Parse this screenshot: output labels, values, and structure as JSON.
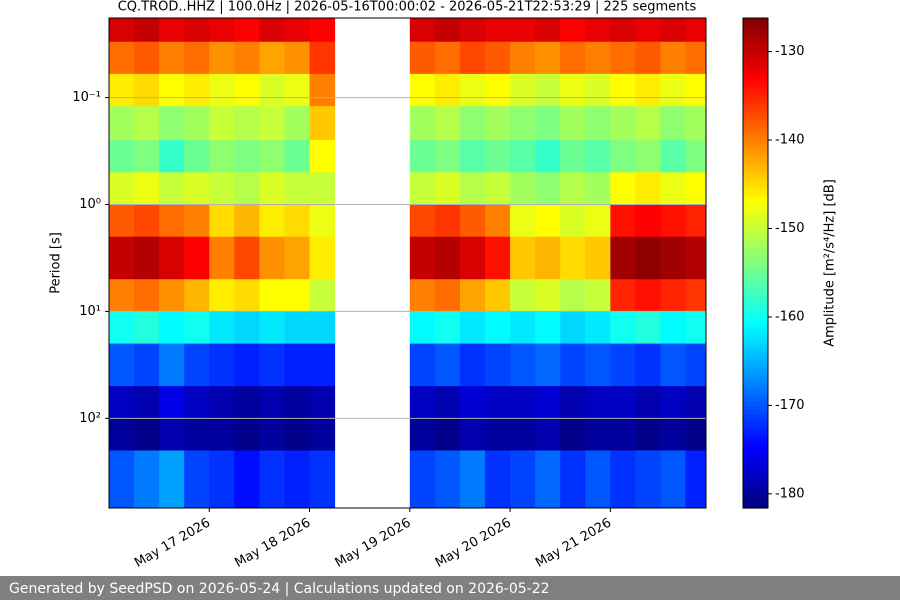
{
  "chart_data": {
    "type": "heatmap",
    "title": "CQ.TROD..HHZ | 100.0Hz | 2026-05-16T00:00:02 - 2026-05-21T22:53:29 | 225 segments",
    "y_label": "Period [s]",
    "colorbar_label": "Amplitude [m²/s⁴/Hz] [dB]",
    "footer": "Generated by SeedPSD on 2026-05-24 | Calculations updated on 2026-05-22",
    "x": [
      "2026-05-16T00:00",
      "2026-05-16T06:00",
      "2026-05-16T12:00",
      "2026-05-16T18:00",
      "2026-05-17T00:00",
      "2026-05-17T06:00",
      "2026-05-17T12:00",
      "2026-05-17T18:00",
      "2026-05-18T00:00",
      "2026-05-18T06:00",
      "2026-05-18T12:00",
      "2026-05-18T18:00",
      "2026-05-19T00:00",
      "2026-05-19T06:00",
      "2026-05-19T12:00",
      "2026-05-19T18:00",
      "2026-05-20T00:00",
      "2026-05-20T06:00",
      "2026-05-20T12:00",
      "2026-05-20T18:00",
      "2026-05-21T00:00",
      "2026-05-21T06:00",
      "2026-05-21T12:00",
      "2026-05-21T18:00"
    ],
    "xlim": [
      "2026-05-16T00:00:02",
      "2026-05-21T22:53:29"
    ],
    "xticks": [
      {
        "value": "2026-05-17T00:00",
        "label": "May 17 2026"
      },
      {
        "value": "2026-05-18T00:00",
        "label": "May 18 2026"
      },
      {
        "value": "2026-05-19T00:00",
        "label": "May 19 2026"
      },
      {
        "value": "2026-05-20T00:00",
        "label": "May 20 2026"
      },
      {
        "value": "2026-05-21T00:00",
        "label": "May 21 2026"
      }
    ],
    "ybins": [
      0.018,
      0.03,
      0.06,
      0.12,
      0.25,
      0.5,
      1,
      2,
      5,
      10,
      20,
      50,
      100,
      200,
      690
    ],
    "ylim": [
      0.018,
      690
    ],
    "y_log": true,
    "y_inverted": true,
    "yticks": [
      {
        "value": 0.1,
        "label": "10⁻¹"
      },
      {
        "value": 1,
        "label": "10⁰"
      },
      {
        "value": 10,
        "label": "10¹"
      },
      {
        "value": 100,
        "label": "10²"
      }
    ],
    "grid": true,
    "colormap": "jet",
    "zlim": [
      -181.6,
      -126.2
    ],
    "zticks": [
      -130,
      -140,
      -150,
      -160,
      -170,
      -180
    ],
    "z": [
      [
        -131,
        -130,
        -132,
        -131,
        -132,
        -133,
        -131,
        -132,
        -133,
        null,
        null,
        null,
        -131,
        -130,
        -131,
        -132,
        -132,
        -131,
        -133,
        -132,
        -131,
        -132,
        -131,
        -132
      ],
      [
        -139,
        -138,
        -140,
        -139,
        -141,
        -140,
        -142,
        -141,
        -136,
        null,
        null,
        null,
        -138,
        -139,
        -137,
        -138,
        -140,
        -141,
        -139,
        -140,
        -139,
        -138,
        -140,
        -139
      ],
      [
        -146,
        -145,
        -147,
        -146,
        -148,
        -147,
        -149,
        -148,
        -140,
        null,
        null,
        null,
        -147,
        -146,
        -148,
        -147,
        -149,
        -150,
        -148,
        -149,
        -147,
        -146,
        -148,
        -147
      ],
      [
        -152,
        -151,
        -153,
        -152,
        -150,
        -151,
        -150,
        -152,
        -144,
        null,
        null,
        null,
        -152,
        -151,
        -153,
        -152,
        -153,
        -154,
        -152,
        -153,
        -152,
        -151,
        -153,
        -152
      ],
      [
        -155,
        -154,
        -158,
        -155,
        -153,
        -154,
        -153,
        -155,
        -147,
        null,
        null,
        null,
        -155,
        -154,
        -156,
        -155,
        -156,
        -158,
        -155,
        -156,
        -154,
        -153,
        -156,
        -154
      ],
      [
        -149,
        -148,
        -150,
        -149,
        -150,
        -151,
        -149,
        -150,
        -150,
        null,
        null,
        null,
        -150,
        -149,
        -151,
        -150,
        -152,
        -153,
        -151,
        -152,
        -147,
        -146,
        -148,
        -147
      ],
      [
        -138,
        -137,
        -139,
        -140,
        -145,
        -143,
        -146,
        -145,
        -148,
        null,
        null,
        null,
        -137,
        -136,
        -138,
        -140,
        -148,
        -147,
        -149,
        -148,
        -134,
        -133,
        -134,
        -135
      ],
      [
        -130,
        -129,
        -131,
        -133,
        -140,
        -137,
        -141,
        -142,
        -146,
        null,
        null,
        null,
        -130,
        -129,
        -131,
        -134,
        -144,
        -143,
        -145,
        -144,
        -128,
        -127,
        -128,
        -129
      ],
      [
        -140,
        -139,
        -141,
        -143,
        -146,
        -145,
        -147,
        -147,
        -150,
        null,
        null,
        null,
        -140,
        -139,
        -142,
        -144,
        -150,
        -149,
        -151,
        -150,
        -135,
        -134,
        -135,
        -136
      ],
      [
        -160,
        -159,
        -161,
        -160,
        -162,
        -163,
        -162,
        -163,
        -163,
        null,
        null,
        null,
        -161,
        -160,
        -162,
        -161,
        -162,
        -161,
        -163,
        -162,
        -160,
        -159,
        -161,
        -160
      ],
      [
        -170,
        -171,
        -168,
        -171,
        -172,
        -173,
        -172,
        -173,
        -173,
        null,
        null,
        null,
        -171,
        -170,
        -172,
        -171,
        -170,
        -169,
        -171,
        -170,
        -171,
        -172,
        -170,
        -171
      ],
      [
        -178,
        -179,
        -176,
        -178,
        -179,
        -180,
        -179,
        -180,
        -179,
        null,
        null,
        null,
        -178,
        -179,
        -177,
        -178,
        -178,
        -177,
        -179,
        -178,
        -178,
        -179,
        -178,
        -179
      ],
      [
        -180,
        -181,
        -179,
        -180,
        -180,
        -181,
        -180,
        -181,
        -180,
        null,
        null,
        null,
        -180,
        -181,
        -179,
        -180,
        -180,
        -179,
        -181,
        -180,
        -180,
        -181,
        -180,
        -181
      ],
      [
        -170,
        -168,
        -166,
        -171,
        -172,
        -174,
        -172,
        -173,
        -172,
        null,
        null,
        null,
        -171,
        -170,
        -168,
        -172,
        -171,
        -169,
        -172,
        -170,
        -172,
        -171,
        -170,
        -173
      ]
    ]
  }
}
